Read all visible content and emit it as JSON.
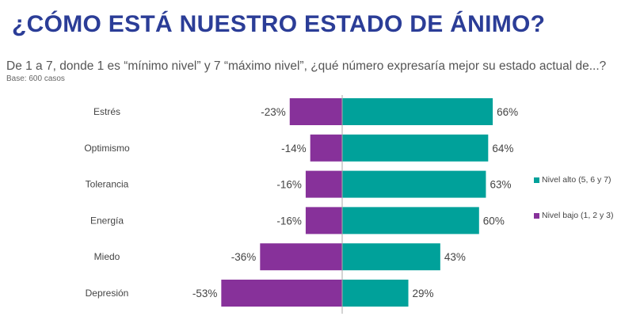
{
  "header": {
    "title": "¿CÓMO ESTÁ NUESTRO ESTADO DE ÁNIMO?",
    "question": "De 1 a 7, donde 1 es “mínimo nivel” y 7 “máximo nivel”, ¿qué número expresaría mejor su estado actual de...?",
    "base": "Base: 600 casos"
  },
  "chart_data": {
    "type": "bar",
    "orientation": "horizontal-diverging",
    "categories": [
      "Estrés",
      "Optimismo",
      "Tolerancia",
      "Energía",
      "Miedo",
      "Depresión"
    ],
    "series": [
      {
        "name": "Nivel alto (5, 6 y 7)",
        "color": "#00A19A",
        "values": [
          66,
          64,
          63,
          60,
          43,
          29
        ],
        "labels": [
          "66%",
          "64%",
          "63%",
          "60%",
          "43%",
          "29%"
        ]
      },
      {
        "name": "Nivel bajo (1, 2 y 3)",
        "color": "#87319A",
        "values": [
          -23,
          -14,
          -16,
          -16,
          -36,
          -53
        ],
        "labels": [
          "-23%",
          "-14%",
          "-16%",
          "-16%",
          "-36%",
          "-53%"
        ]
      }
    ],
    "legend": "right"
  }
}
